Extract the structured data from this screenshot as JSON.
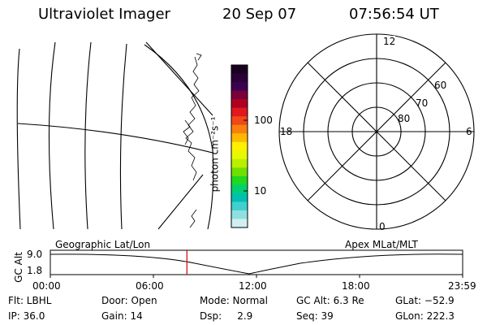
{
  "header": {
    "instrument": "Ultraviolet Imager",
    "date": "20 Sep 07",
    "time": "07:56:54 UT"
  },
  "colorbar": {
    "unit_label": "photon cm⁻²s⁻¹",
    "tick_labels": [
      "100",
      "10"
    ],
    "colors": [
      "#1a0020",
      "#2a0038",
      "#3c0050",
      "#7a003a",
      "#b00020",
      "#e01820",
      "#f04818",
      "#f88010",
      "#ffb800",
      "#fff000",
      "#e8f800",
      "#b8f000",
      "#70e000",
      "#20d820",
      "#00d070",
      "#00c0b0",
      "#40d0d0",
      "#90e0e0",
      "#d0f0f0"
    ]
  },
  "polar_plot": {
    "mlt_labels": {
      "top": "12",
      "left": "18",
      "right": "6",
      "bottom": "0"
    },
    "lat_labels": [
      "60",
      "70",
      "80"
    ]
  },
  "timeline": {
    "left_label": "Geographic Lat/Lon",
    "right_label": "Apex MLat/MLT",
    "y_axis_label": "GC Alt",
    "y_ticks": [
      "9.0",
      "1.8"
    ],
    "x_ticks": [
      "00:00",
      "06:00",
      "12:00",
      "18:00",
      "23:59"
    ],
    "current_time_hours": 7.95
  },
  "status": {
    "flt": "Flt: LBHL",
    "ip": "IP: 36.0",
    "door": "Door: Open",
    "gain": "Gain: 14",
    "mode": "Mode: Normal",
    "dsp": "Dsp:     2.9",
    "gc_alt": "GC Alt: 6.3 Re",
    "seq": "Seq: 39",
    "glat": "GLat: −52.9",
    "glon": "GLon: 222.3"
  }
}
